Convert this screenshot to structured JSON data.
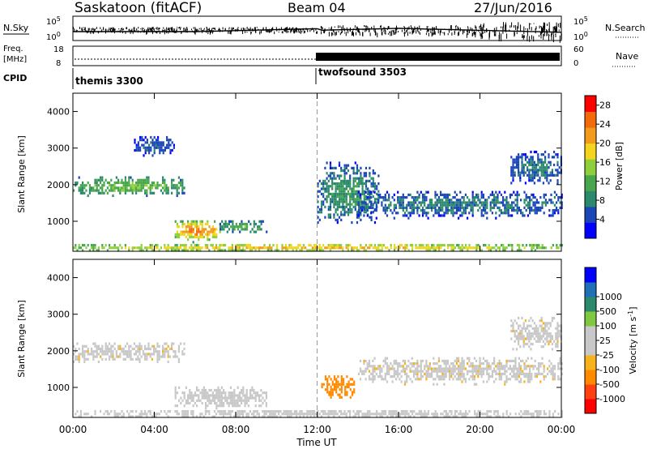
{
  "header": {
    "title": "Saskatoon (fitACF)",
    "beam": "Beam 04",
    "date": "27/Jun/2016"
  },
  "top_panels": {
    "nsky_label": "N.Sky",
    "nsky_ticks": [
      "10^5",
      "10^0"
    ],
    "nsky_right_ticks": [
      "10^5",
      "10^0"
    ],
    "nsearch_label": "N.Search",
    "freq_label": "Freq.",
    "freq_unit": "[MHz]",
    "freq_ticks": [
      "18",
      "8"
    ],
    "nave_ticks": [
      "60",
      "0"
    ],
    "nave_label": "Nave",
    "cpid_label": "CPID",
    "cpid_segments": [
      {
        "name": "themis 3300",
        "start_hour": 0,
        "end_hour": 12
      },
      {
        "name": "twofsound 3503",
        "start_hour": 12,
        "end_hour": 24
      }
    ]
  },
  "colors": {
    "power_scale": [
      "#0000ff",
      "#1a46b8",
      "#2c8a6c",
      "#48a64c",
      "#8fcf3c",
      "#f2d51c",
      "#f29a1c",
      "#f26a0c",
      "#ff0000"
    ],
    "velocity_scale": [
      "#ff0000",
      "#ff4010",
      "#ff8a00",
      "#f7b21c",
      "#c8c8c8",
      "#c8c8c8",
      "#80c840",
      "#2c8a6c",
      "#2070b8",
      "#0000ff"
    ]
  },
  "chart_data": [
    {
      "type": "heatmap",
      "name": "power-panel",
      "ylabel": "Slant Range [km]",
      "ylim": [
        180,
        4500
      ],
      "xlim_hours": [
        0,
        24
      ],
      "y_ticks": [
        "1000",
        "2000",
        "3000",
        "4000"
      ],
      "colorbar": {
        "label": "Power [dB]",
        "ticks": [
          "4",
          "8",
          "12",
          "16",
          "20",
          "24",
          "28"
        ],
        "range": [
          0,
          30
        ]
      },
      "regions": [
        {
          "t_start": 0.0,
          "t_end": 5.5,
          "range_start": 1700,
          "range_end": 2300,
          "peak": 14
        },
        {
          "t_start": 3.0,
          "t_end": 5.0,
          "range_start": 2800,
          "range_end": 3400,
          "peak": 6
        },
        {
          "t_start": 5.0,
          "t_end": 7.2,
          "range_start": 450,
          "range_end": 1100,
          "peak": 24
        },
        {
          "t_start": 7.2,
          "t_end": 9.5,
          "range_start": 700,
          "range_end": 1100,
          "peak": 12
        },
        {
          "t_start": 0.0,
          "t_end": 24.0,
          "range_start": 180,
          "range_end": 450,
          "peak": 20
        },
        {
          "t_start": 12.0,
          "t_end": 15.0,
          "range_start": 900,
          "range_end": 2700,
          "peak": 10
        },
        {
          "t_start": 14.0,
          "t_end": 24.0,
          "range_start": 1100,
          "range_end": 1900,
          "peak": 8
        },
        {
          "t_start": 21.5,
          "t_end": 24.0,
          "range_start": 2000,
          "range_end": 3000,
          "peak": 8
        }
      ]
    },
    {
      "type": "heatmap",
      "name": "velocity-panel",
      "ylabel": "Slant Range [km]",
      "xlabel": "Time UT",
      "ylim": [
        180,
        4500
      ],
      "xlim_hours": [
        0,
        24
      ],
      "y_ticks": [
        "1000",
        "2000",
        "3000",
        "4000"
      ],
      "x_ticks": [
        "00:00",
        "04:00",
        "08:00",
        "12:00",
        "16:00",
        "20:00",
        "00:00"
      ],
      "colorbar": {
        "label": "Velocity [m s^-1]",
        "ticks": [
          "-1000",
          "-500",
          "-100",
          "-25",
          "25",
          "100",
          "500",
          "1000"
        ]
      },
      "regions": [
        {
          "t_start": 0.0,
          "t_end": 5.5,
          "range_start": 1700,
          "range_end": 2300,
          "velocity": 0
        },
        {
          "t_start": 5.0,
          "t_end": 9.5,
          "range_start": 450,
          "range_end": 1100,
          "velocity": 10
        },
        {
          "t_start": 12.2,
          "t_end": 13.8,
          "range_start": 700,
          "range_end": 1400,
          "velocity": -150
        },
        {
          "t_start": 0.0,
          "t_end": 24.0,
          "range_start": 180,
          "range_end": 450,
          "velocity": 40
        },
        {
          "t_start": 14.0,
          "t_end": 24.0,
          "range_start": 1100,
          "range_end": 1900,
          "velocity": 0
        },
        {
          "t_start": 21.5,
          "t_end": 24.0,
          "range_start": 2000,
          "range_end": 3000,
          "velocity": 0
        }
      ]
    }
  ]
}
